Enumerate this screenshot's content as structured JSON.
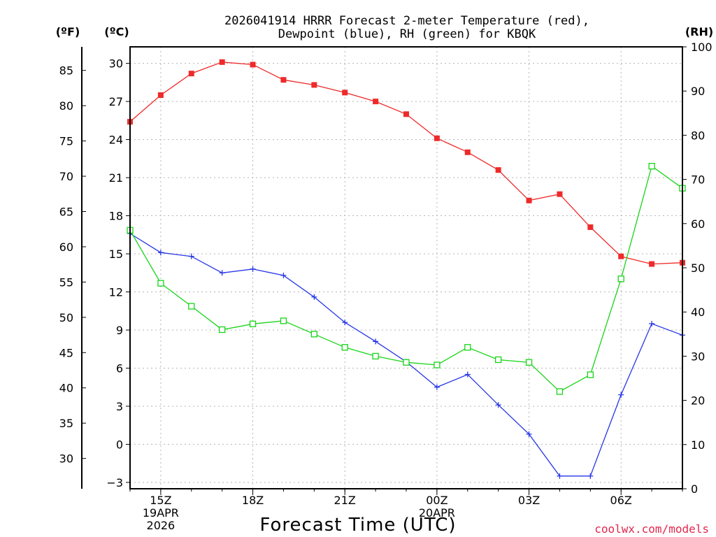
{
  "chart_data": {
    "type": "line",
    "title_line1": "2026041914 HRRR Forecast 2-meter Temperature (red),",
    "title_line2": "Dewpoint (blue), RH (green) for KBQK",
    "xlabel": "Forecast Time (UTC)",
    "credit": "coolwx.com/models",
    "left_unit_label": "(ºF)",
    "mid_unit_label": "(ºC)",
    "right_unit_label": "(RH)",
    "x_hours": [
      14,
      15,
      16,
      17,
      18,
      19,
      20,
      21,
      22,
      23,
      24,
      25,
      26,
      27,
      28,
      29,
      30,
      31,
      32
    ],
    "x_tick_labels": [
      {
        "hour": 15,
        "lines": [
          "15Z",
          "19APR",
          "2026"
        ]
      },
      {
        "hour": 18,
        "lines": [
          "18Z"
        ]
      },
      {
        "hour": 21,
        "lines": [
          "21Z"
        ]
      },
      {
        "hour": 24,
        "lines": [
          "00Z",
          "20APR"
        ]
      },
      {
        "hour": 27,
        "lines": [
          "03Z"
        ]
      },
      {
        "hour": 30,
        "lines": [
          "06Z"
        ]
      }
    ],
    "celsius_ticks": [
      "-3",
      "0",
      "3",
      "6",
      "9",
      "12",
      "15",
      "18",
      "21",
      "24",
      "27",
      "30"
    ],
    "fahrenheit_ticks": [
      "30",
      "35",
      "40",
      "45",
      "50",
      "55",
      "60",
      "65",
      "70",
      "75",
      "80",
      "85"
    ],
    "rh_ticks": [
      "0",
      "10",
      "20",
      "30",
      "40",
      "50",
      "60",
      "70",
      "80",
      "90",
      "100"
    ],
    "ylim_c": [
      -3.5,
      31.3
    ],
    "ylim_rh": [
      0,
      100
    ],
    "series": [
      {
        "name": "Temperature",
        "unit": "C",
        "color": "#ee2a2a",
        "marker": "filled-square",
        "values": [
          25.4,
          27.5,
          29.2,
          30.1,
          29.9,
          28.7,
          28.3,
          27.7,
          27.0,
          26.0,
          24.1,
          23.0,
          21.6,
          19.2,
          19.7,
          17.1,
          14.8,
          14.2,
          14.3
        ]
      },
      {
        "name": "Dewpoint",
        "unit": "C",
        "color": "#2636e6",
        "marker": "plus",
        "values": [
          16.6,
          15.1,
          14.8,
          13.5,
          13.8,
          13.3,
          11.6,
          9.6,
          8.1,
          6.5,
          4.5,
          5.5,
          3.1,
          0.8,
          -2.5,
          -2.5,
          3.9,
          9.5,
          8.6
        ]
      },
      {
        "name": "RH",
        "unit": "%",
        "color": "#18d418",
        "marker": "open-square",
        "values": [
          58.5,
          46.5,
          41.3,
          36.0,
          37.3,
          38.0,
          35.0,
          32.0,
          30.0,
          28.6,
          28.0,
          32.0,
          29.2,
          28.6,
          22.0,
          25.8,
          47.5,
          73.0,
          68.0
        ]
      }
    ]
  }
}
